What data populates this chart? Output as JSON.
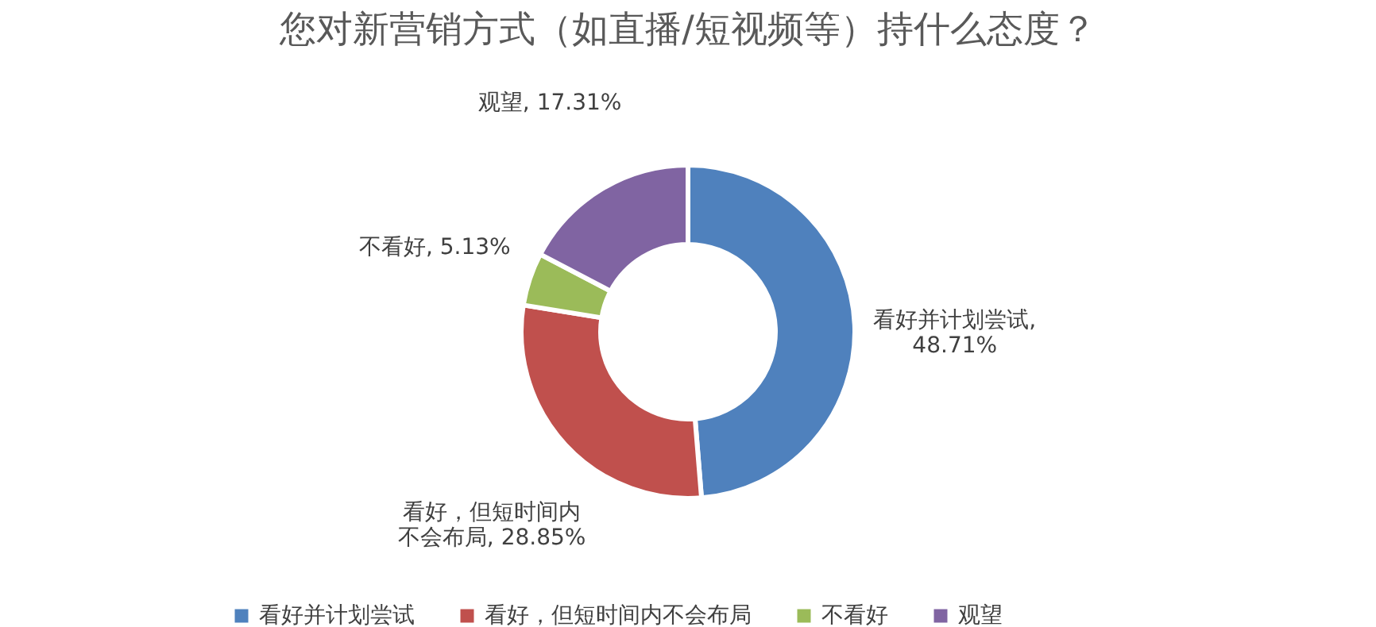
{
  "chart_data": {
    "type": "donut",
    "title": "您对新营销方式（如直播/短视频等）持什么态度？",
    "categories": [
      "看好并计划尝试",
      "看好，但短时间内不会布局",
      "不看好",
      "观望"
    ],
    "values": [
      48.71,
      28.85,
      5.13,
      17.31
    ],
    "value_labels": [
      "看好并计划尝试, 48.71%",
      "看好，但短时间内不会布局, 28.85%",
      "不看好, 5.13%",
      "观望, 17.31%"
    ],
    "colors": [
      "#4f81bd",
      "#c0504d",
      "#9bbb59",
      "#8064a2"
    ],
    "legend": "bottom"
  }
}
